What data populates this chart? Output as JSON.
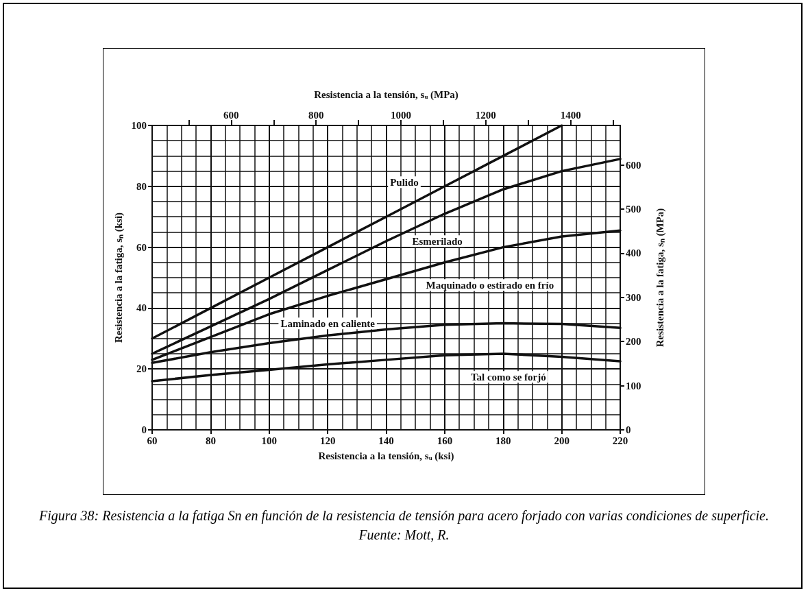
{
  "chart_data": {
    "type": "line",
    "xlabel": "Resistencia a la tensión, sᵤ (ksi)",
    "ylabel": "Resistencia a la fatiga, sₙ (ksi)",
    "x2label": "Resistencia a la tensión, sᵤ (MPa)",
    "y2label": "Resistencia a la fatiga, sₙ (MPa)",
    "annotations": [
      "Figura 38: Resistencia a la fatiga Sn en función de la resistencia de tensión para acero forjado con varias condiciones de superficie.",
      "Fuente: Mott, R."
    ],
    "x": [
      60,
      80,
      100,
      120,
      140,
      160,
      180,
      200,
      220
    ],
    "series": [
      {
        "name": "Pulido",
        "color": "#111111",
        "x": [
          60,
          80,
          100,
          120,
          140,
          160,
          180,
          200
        ],
        "values": [
          30,
          40,
          50,
          60,
          70,
          80,
          90,
          100
        ]
      },
      {
        "name": "Esmerilado",
        "color": "#111111",
        "values": [
          25,
          34,
          43,
          52.5,
          62,
          71,
          79,
          85,
          89
        ]
      },
      {
        "name": "Maquinado o estirado en frío",
        "color": "#111111",
        "values": [
          23,
          30.5,
          38,
          44,
          49.5,
          55,
          60,
          63.5,
          65.5
        ]
      },
      {
        "name": "Laminado en caliente",
        "color": "#111111",
        "values": [
          22,
          25.5,
          28.5,
          31,
          33,
          34.5,
          35,
          34.8,
          33.5
        ]
      },
      {
        "name": "Tal como se forjó",
        "color": "#111111",
        "values": [
          16,
          18,
          19.7,
          21.5,
          23,
          24.5,
          25,
          24,
          22.5
        ]
      }
    ],
    "xlim": [
      60,
      220
    ],
    "xticks": [
      60,
      80,
      100,
      120,
      140,
      160,
      180,
      200,
      220
    ],
    "ylim": [
      0,
      100
    ],
    "yticks": [
      0,
      20,
      40,
      60,
      80,
      100
    ],
    "x2lim": [
      413.7,
      1516.9
    ],
    "x2ticks": [
      {
        "value": 500,
        "label": null
      },
      600,
      {
        "value": 700,
        "label": null
      },
      800,
      {
        "value": 900,
        "label": null
      },
      1000,
      {
        "value": 1100,
        "label": null
      },
      1200,
      {
        "value": 1300,
        "label": null
      },
      1400,
      {
        "value": 1500,
        "label": null
      }
    ],
    "y2lim": [
      0,
      689.5
    ],
    "y2ticks": [
      0,
      100,
      200,
      300,
      400,
      500,
      600
    ],
    "grid": true,
    "legend": false,
    "marker": "none",
    "line_style": "solid"
  }
}
